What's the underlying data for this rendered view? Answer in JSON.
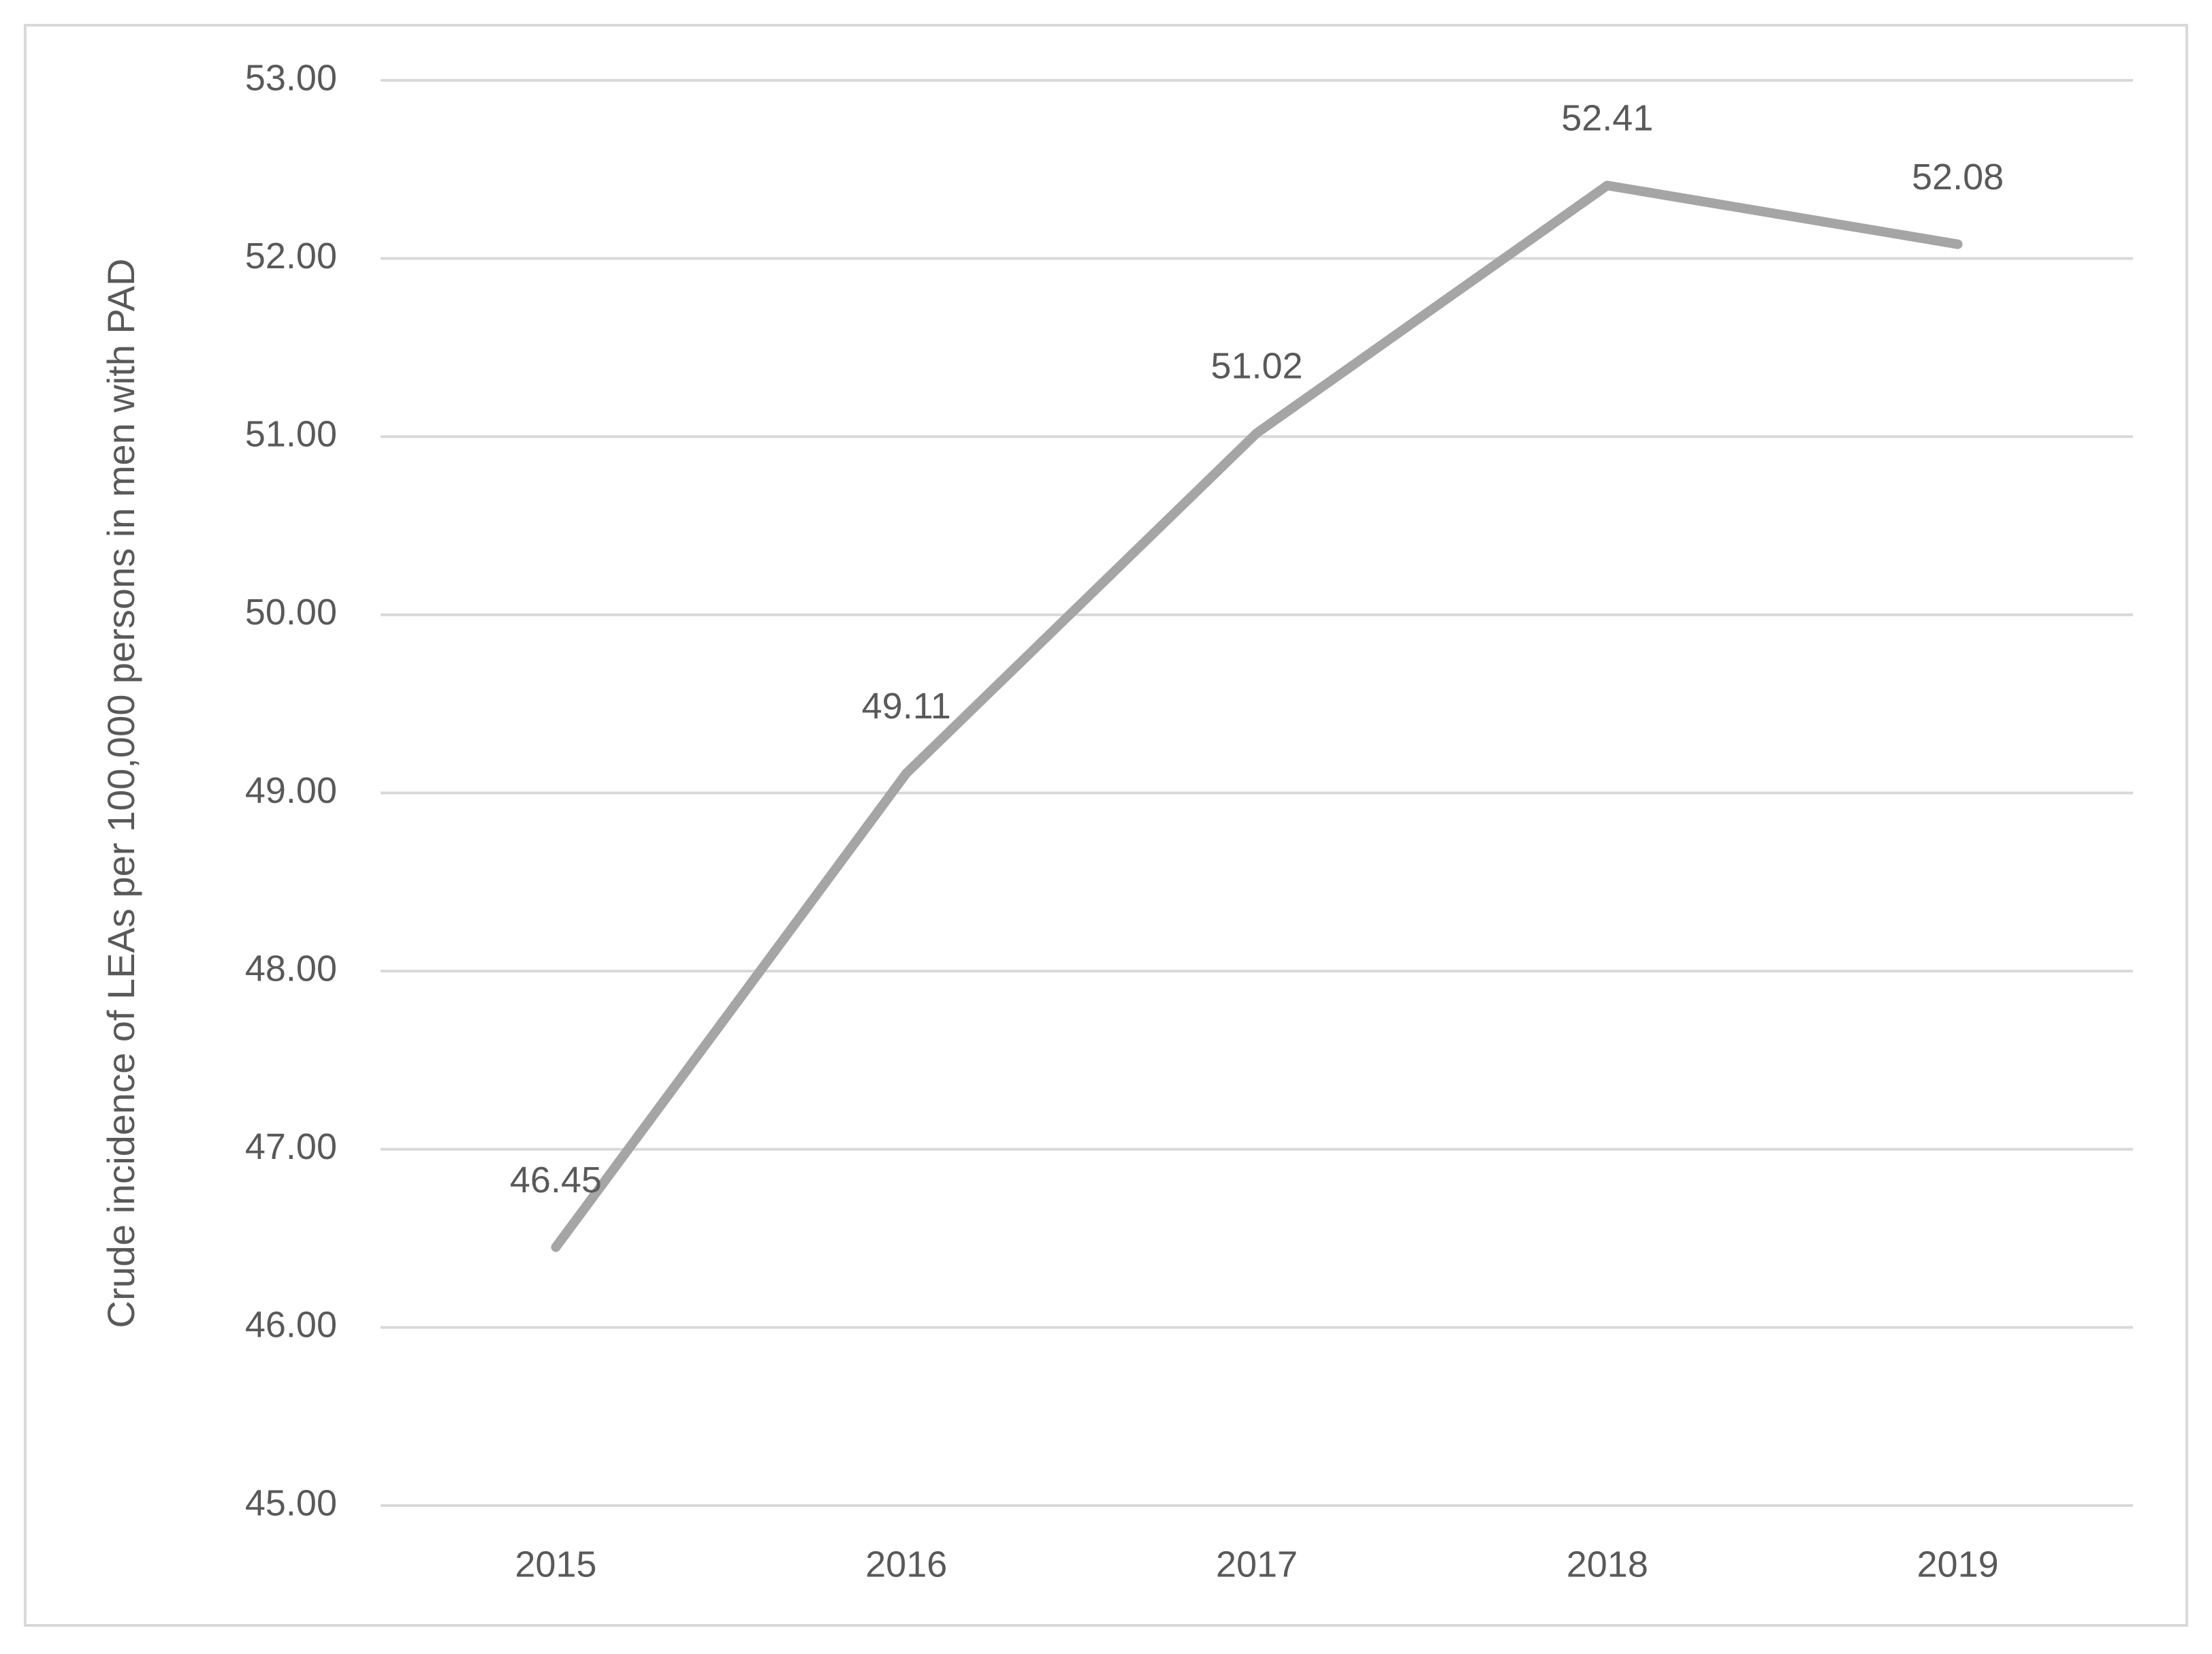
{
  "chart_data": {
    "type": "line",
    "y_label": "Crude incidence of LEAs per 100,000 persons in men with PAD",
    "categories": [
      "2015",
      "2016",
      "2017",
      "2018",
      "2019"
    ],
    "values": [
      46.45,
      49.11,
      51.02,
      52.41,
      52.08
    ],
    "color": "#a5a5a5",
    "ylim": [
      45,
      53
    ],
    "yticks": [
      {
        "value": 45,
        "label": "45.00"
      },
      {
        "value": 46,
        "label": "46.00"
      },
      {
        "value": 47,
        "label": "47.00"
      },
      {
        "value": 48,
        "label": "48.00"
      },
      {
        "value": 49,
        "label": "49.00"
      },
      {
        "value": 50,
        "label": "50.00"
      },
      {
        "value": 51,
        "label": "51.00"
      },
      {
        "value": 52,
        "label": "52.00"
      },
      {
        "value": 53,
        "label": "53.00"
      }
    ],
    "grid": true
  }
}
